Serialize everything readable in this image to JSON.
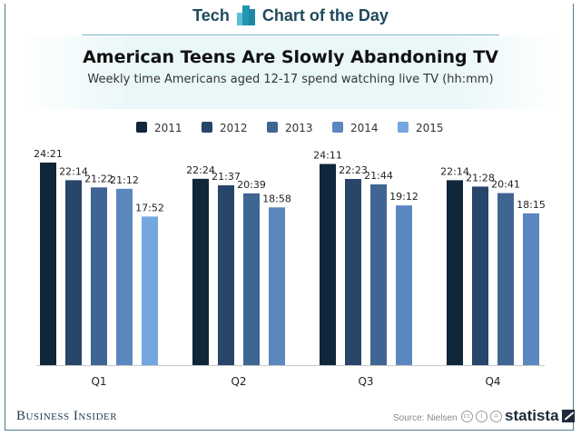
{
  "header": {
    "left_label": "Tech",
    "right_label": "Chart of the Day",
    "icon": "bar-chart-logo-icon"
  },
  "footer": {
    "brand": "Business Insider",
    "source": "Source: Nielsen",
    "license_icons": [
      "cc-icon",
      "attribution-icon",
      "no-derivatives-icon"
    ],
    "publisher": "statista"
  },
  "colors": {
    "2011": "#10263a",
    "2012": "#27466a",
    "2013": "#3f6592",
    "2014": "#5b87bf",
    "2015": "#74a6e0",
    "header_text": "#1e4a5c",
    "frame": "#4f7b8e"
  },
  "chart_data": {
    "type": "bar",
    "title": "American Teens Are Slowly Abandoning TV",
    "subtitle": "Weekly time Americans aged 12-17 spend watching live TV (hh:mm)",
    "xlabel": "",
    "ylabel": "",
    "value_unit": "hh:mm per week",
    "grid": false,
    "legend_position": "top-center",
    "categories": [
      "Q1",
      "Q2",
      "Q3",
      "Q4"
    ],
    "series": [
      {
        "name": "2011",
        "labels": [
          "24:21",
          "22:24",
          "24:11",
          "22:14"
        ],
        "values_minutes": [
          1461,
          1344,
          1451,
          1334
        ]
      },
      {
        "name": "2012",
        "labels": [
          "22:14",
          "21:37",
          "22:23",
          "21:28"
        ],
        "values_minutes": [
          1334,
          1297,
          1343,
          1288
        ]
      },
      {
        "name": "2013",
        "labels": [
          "21:22",
          "20:39",
          "21:44",
          "20:41"
        ],
        "values_minutes": [
          1282,
          1239,
          1304,
          1241
        ]
      },
      {
        "name": "2014",
        "labels": [
          "21:12",
          "18:58",
          "19:12",
          "18:15"
        ],
        "values_minutes": [
          1272,
          1138,
          1152,
          1095
        ]
      },
      {
        "name": "2015",
        "labels": [
          "17:52",
          null,
          null,
          null
        ],
        "values_minutes": [
          1072,
          null,
          null,
          null
        ]
      }
    ],
    "ylim_minutes": [
      0,
      1461
    ]
  }
}
